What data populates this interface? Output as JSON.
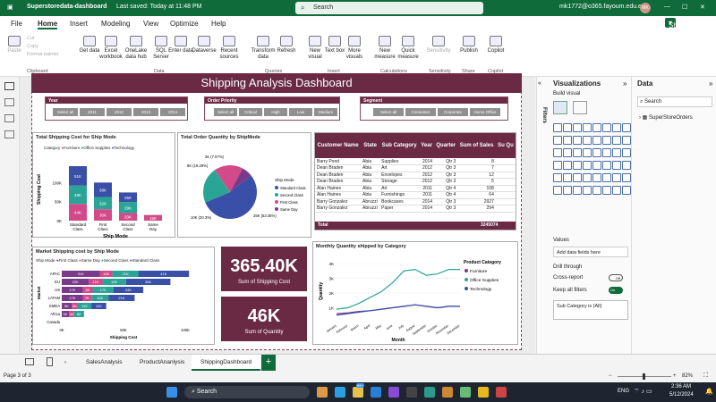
{
  "window": {
    "title": "Superstoredata-dashboard",
    "saved": "Last saved: Today at 11:48 PM",
    "account": "mk1772@o365.fayoum.edu.eg",
    "avatar": "MK",
    "search_placeholder": "Search",
    "share": "Share"
  },
  "menu": [
    "File",
    "Home",
    "Insert",
    "Modeling",
    "View",
    "Optimize",
    "Help"
  ],
  "ribbon": {
    "buttons": [
      "Paste",
      "Get data",
      "Excel workbook",
      "OneLake data hub",
      "SQL Server",
      "Enter data",
      "Dataverse",
      "Recent sources",
      "Transform data",
      "Refresh",
      "New visual",
      "Text box",
      "More visuals",
      "New measure",
      "Quick measure",
      "Sensitivity",
      "Publish",
      "Copilot"
    ],
    "clip": [
      "Cut",
      "Copy",
      "Format painter"
    ],
    "groups": [
      "Clipboard",
      "Data",
      "Queries",
      "Insert",
      "Calculations",
      "Sensitivity",
      "Share",
      "Copilot"
    ]
  },
  "dashboard": {
    "title": "Shipping Analysis Dashboard",
    "slicers": [
      {
        "title": "Year",
        "items": [
          "Select all",
          "2011",
          "2012",
          "2013",
          "2014"
        ]
      },
      {
        "title": "Order Priority",
        "items": [
          "Select all",
          "Critical",
          "High",
          "Low",
          "Medium"
        ]
      },
      {
        "title": "Segment",
        "items": [
          "Select all",
          "Consumer",
          "Corporate",
          "Home Office"
        ]
      }
    ],
    "kpi": [
      {
        "value": "365.40K",
        "label": "Sum of Shipping Cost"
      },
      {
        "value": "46K",
        "label": "Sum of Quantity"
      }
    ]
  },
  "charts": {
    "shipcost": {
      "title": "Total Shipping Cost for Ship Mode",
      "legend_title": "Category",
      "xlabel": "Ship Mode",
      "ylabel": "Shipping Cost",
      "yticks": [
        "100K",
        "50K",
        "0K"
      ],
      "colors": [
        "#3a4fa8",
        "#2aa595",
        "#d34a8a"
      ]
    },
    "pie": {
      "title": "Total Order Quantity by ShipMode",
      "legend_title": "Ship Mode",
      "labels": [
        "3K (7.57%)",
        "8K (18.29%)",
        "10K (20.3%)",
        "25K (53.35%)"
      ]
    },
    "market": {
      "title": "Market Shipping cost by Ship Mode",
      "legend_title": "Ship Mode",
      "ylabel": "Market",
      "xlabel": "Shipping Cost",
      "xticks": [
        "0K",
        "50K",
        "100K"
      ]
    },
    "monthly": {
      "title": "Monthly Quantity shipped by Category",
      "legend_title": "Product Category",
      "ylabel": "Quantity",
      "xlabel": "Month",
      "yticks": [
        "4K",
        "3K",
        "2K",
        "1K"
      ]
    }
  },
  "chart_data": [
    {
      "type": "bar",
      "title": "Total Shipping Cost for Ship Mode",
      "categories": [
        "Standard Class",
        "First Class",
        "Second Class",
        "Same Day"
      ],
      "series": [
        {
          "name": "Furniture",
          "values": [
            44,
            30,
            20,
            15
          ]
        },
        {
          "name": "Office Supplies",
          "values": [
            48,
            32,
            29,
            0
          ]
        },
        {
          "name": "Technology",
          "values": [
            51,
            38,
            25,
            0
          ]
        }
      ],
      "xlabel": "Ship Mode",
      "ylabel": "Shipping Cost",
      "ylim": [
        0,
        150
      ]
    },
    {
      "type": "pie",
      "title": "Total Order Quantity by ShipMode",
      "categories": [
        "Standard Class",
        "Second Class",
        "First Class",
        "Same Day"
      ],
      "values": [
        25,
        10,
        8,
        3
      ],
      "colors": [
        "#3a4fa8",
        "#2aa595",
        "#d34a8a",
        "#7a3a8a"
      ]
    },
    {
      "type": "bar",
      "title": "Market Shipping cost by Ship Mode",
      "categories": [
        "APAC",
        "EU",
        "US",
        "LATAM",
        "EMEA",
        "Africa",
        "Canada"
      ],
      "series": [
        {
          "name": "First Class",
          "values": [
            31,
            22,
            17,
            17,
            8,
            6,
            0
          ]
        },
        {
          "name": "Same Day",
          "values": [
            10,
            11,
            8,
            7,
            5,
            4,
            0
          ]
        },
        {
          "name": "Second Class",
          "values": [
            21,
            19,
            17,
            14,
            11,
            8,
            0
          ]
        },
        {
          "name": "Standard Class",
          "values": [
            41,
            36,
            24,
            21,
            12,
            0,
            0
          ]
        }
      ],
      "labels": [
        [
          "31K",
          "10K",
          "21K",
          "41K"
        ],
        [
          "22K",
          "11K",
          "19K",
          "36K"
        ],
        [
          "17K",
          "8K",
          "17K",
          "24K"
        ],
        [
          "17K",
          "7K",
          "14K",
          "21K"
        ],
        [
          "8K",
          "5K",
          "11K",
          "12K"
        ],
        [
          "6K",
          "4K",
          "8K",
          ""
        ],
        [
          "",
          "",
          "",
          ""
        ]
      ],
      "xlabel": "Shipping Cost",
      "ylabel": "Market"
    },
    {
      "type": "line",
      "title": "Monthly Quantity shipped by Category",
      "x": [
        "January",
        "February",
        "March",
        "April",
        "May",
        "June",
        "July",
        "August",
        "September",
        "October",
        "November",
        "December"
      ],
      "series": [
        {
          "name": "Furniture",
          "values": [
            0.6,
            0.65,
            0.75,
            0.8,
            0.9,
            1.0,
            1.1,
            1.2,
            1.1,
            1.0,
            1.1,
            1.1
          ]
        },
        {
          "name": "Office Supplies",
          "values": [
            0.9,
            1.0,
            1.3,
            1.7,
            2.1,
            2.7,
            3.5,
            3.6,
            3.2,
            3.3,
            3.6,
            3.6
          ]
        },
        {
          "name": "Technology",
          "values": [
            0.5,
            0.6,
            0.7,
            0.8,
            0.9,
            1.0,
            1.1,
            1.2,
            1.1,
            1.0,
            1.1,
            1.1
          ]
        }
      ],
      "xlabel": "Month",
      "ylabel": "Quantity",
      "ylim": [
        0,
        4
      ]
    }
  ],
  "table": {
    "headers": [
      "Customer Name",
      "State",
      "Sub Category",
      "Year",
      "Quarter",
      "Sum of Sales",
      "Su Qu"
    ],
    "rows": [
      [
        "Barry Pond",
        "Abia",
        "Supplies",
        "2014",
        "Qtr 3",
        "8",
        ""
      ],
      [
        "Dean Braden",
        "Abia",
        "Art",
        "2012",
        "Qtr 3",
        "7",
        ""
      ],
      [
        "Dean Braden",
        "Abia",
        "Envelopes",
        "2012",
        "Qtr 3",
        "12",
        ""
      ],
      [
        "Dean Braden",
        "Abia",
        "Storage",
        "2012",
        "Qtr 3",
        "5",
        ""
      ],
      [
        "Alan Haines",
        "Abia",
        "Art",
        "2011",
        "Qtr 4",
        "108",
        ""
      ],
      [
        "Alan Haines",
        "Abia",
        "Furnishings",
        "2011",
        "Qtr 4",
        "64",
        ""
      ],
      [
        "Barry Gonzalez",
        "Abruzzi",
        "Bookcases",
        "2014",
        "Qtr 3",
        "2927",
        ""
      ],
      [
        "Barry Gonzalez",
        "Abruzzi",
        "Paper",
        "2014",
        "Qtr 3",
        "294",
        ""
      ]
    ],
    "total_label": "Total",
    "total_value": "3245074"
  },
  "viz": {
    "title": "Visualizations",
    "build": "Build visual",
    "values": "Values",
    "add_fields": "Add data fields here",
    "drill": "Drill through",
    "cross": "Cross-report",
    "cross_state": "Off",
    "keep": "Keep all filters",
    "keep_state": "On",
    "filter": "Sub Category is (All)"
  },
  "data": {
    "title": "Data",
    "search": "Search",
    "table": "SuperStoreOrders"
  },
  "filters_label": "Filters",
  "tabs": [
    "SalesAnalysis",
    "ProductAnanlysis",
    "ShippingDashboard"
  ],
  "status": {
    "page": "Page 3 of 3",
    "zoom": "82%"
  },
  "taskbar": {
    "search": "Search",
    "lang": "ENG",
    "time": "2:36 AM",
    "date": "5/12/2024",
    "badge": "99+"
  }
}
